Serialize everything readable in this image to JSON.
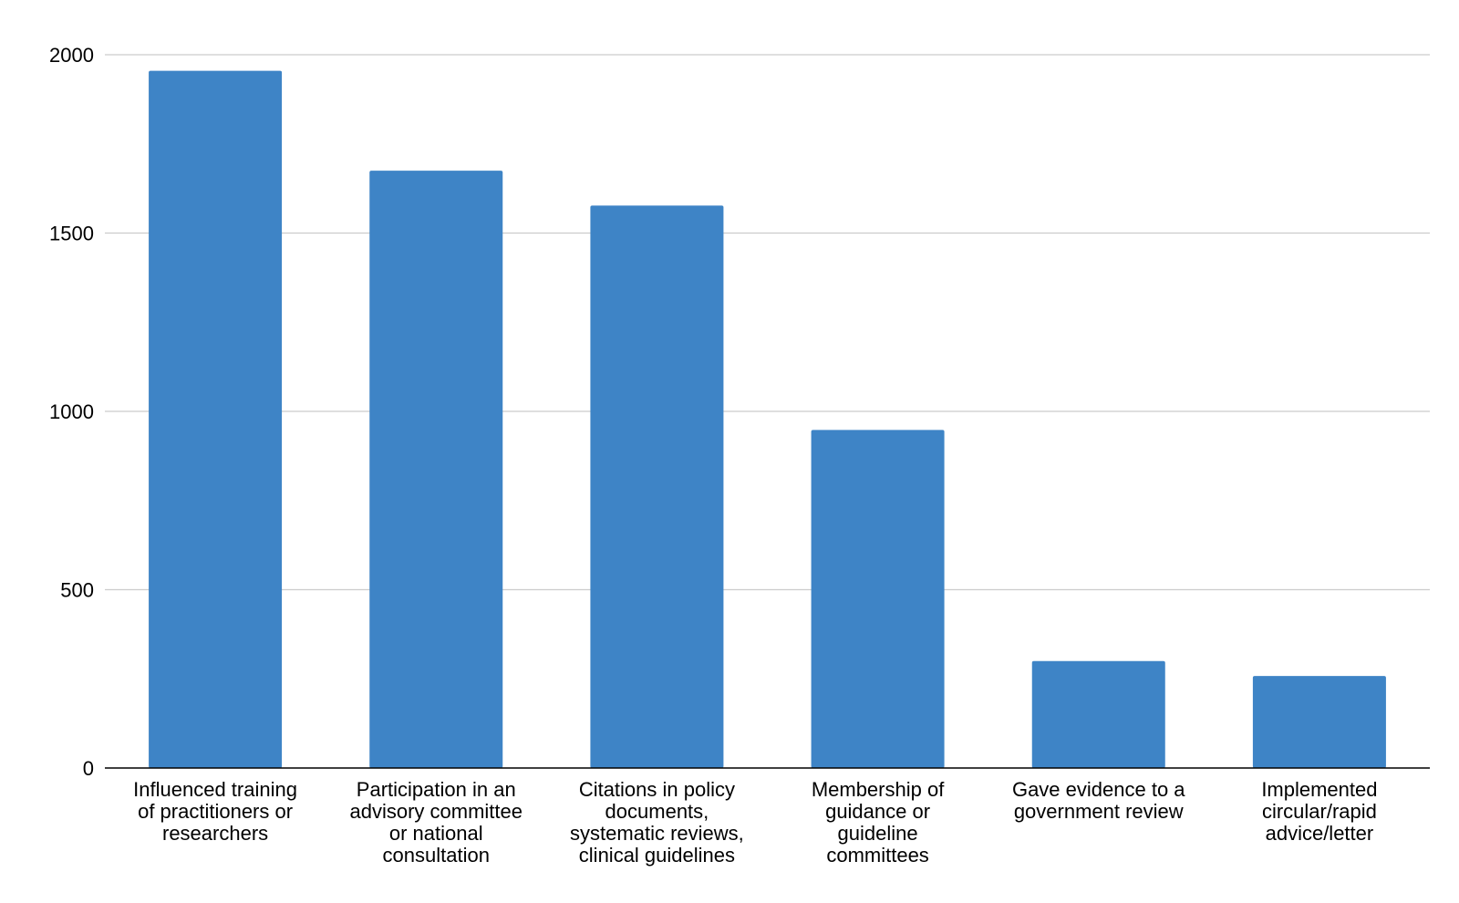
{
  "chart_data": {
    "type": "bar",
    "title": "",
    "xlabel": "",
    "ylabel": "",
    "ylim": [
      0,
      2000
    ],
    "yticks": [
      0,
      500,
      1000,
      1500,
      2000
    ],
    "grid": true,
    "bar_color": "#3e84c6",
    "categories": [
      [
        "Influenced training",
        "of practitioners or",
        "researchers"
      ],
      [
        "Participation in an",
        "advisory committee",
        "or national",
        "consultation"
      ],
      [
        "Citations in policy",
        "documents,",
        "systematic reviews,",
        "clinical guidelines"
      ],
      [
        "Membership of",
        "guidance or",
        "guideline",
        "committees"
      ],
      [
        "Gave evidence to a",
        "government review"
      ],
      [
        "Implemented",
        "circular/rapid",
        "advice/letter"
      ]
    ],
    "values": [
      1955,
      1675,
      1577,
      948,
      300,
      258
    ]
  }
}
